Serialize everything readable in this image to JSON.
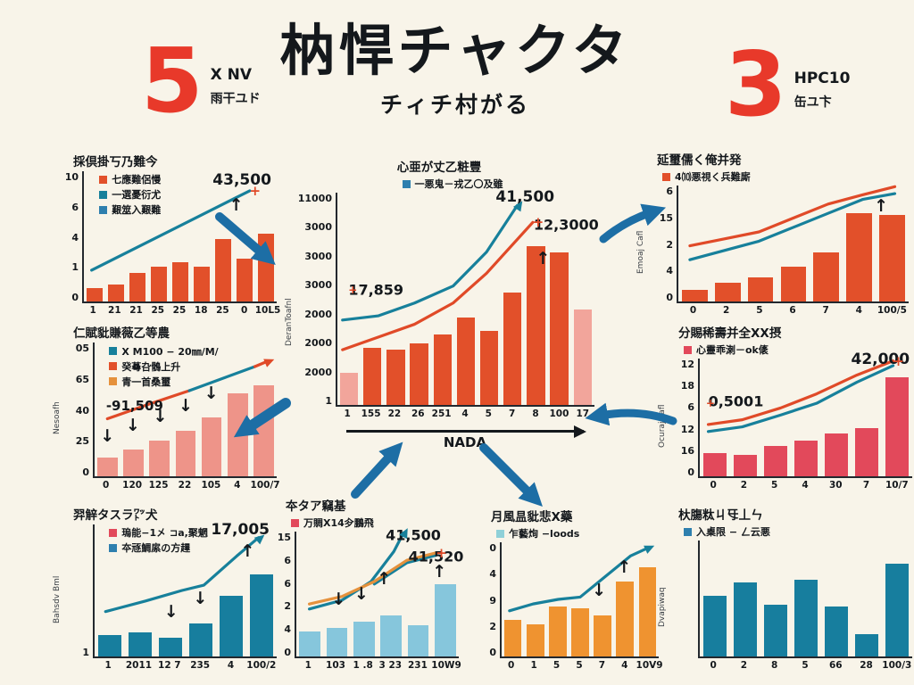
{
  "page": {
    "background": "#f8f4e9",
    "accent_red": "#e8392a",
    "arrow_blue": "#1d6ea5"
  },
  "header": {
    "left_stat": {
      "number": "5",
      "line1": "X NV",
      "line2": "雨干ユド"
    },
    "title": "枘悍チャクタ",
    "subtitle": "チィチ村がる",
    "right_stat": {
      "number": "3",
      "line1": "HPC10",
      "line2": "缶ユ卞"
    }
  },
  "chart_data": [
    {
      "id": "top-left",
      "type": "bar",
      "title": "採倶掛丂乃難今",
      "title_align": "left",
      "legend": [
        {
          "color": "#e2502a",
          "label": "七應難侶慢"
        },
        {
          "color": "#17809b",
          "label": "一選憂衍尤"
        },
        {
          "color": "#2e7fae",
          "label": "艱筮入艱難"
        }
      ],
      "legend_overlay": true,
      "y_ticks": [
        "10",
        "6",
        "4",
        "1",
        "0"
      ],
      "x_ticks": [
        "1",
        "21",
        "21",
        "25",
        "25",
        "18",
        "25",
        "0",
        "10L5"
      ],
      "bars": {
        "color": "#e2502a",
        "values": [
          10,
          13,
          22,
          27,
          30,
          27,
          48,
          33,
          52
        ]
      },
      "lines": [
        {
          "color": "#17809b",
          "points": [
            [
              4,
              76
            ],
            [
              86,
              15
            ]
          ],
          "end": "plus",
          "end_color": "#e04a28"
        }
      ],
      "annotations": [
        {
          "text": "43,500",
          "x": 82,
          "y": 7,
          "size": 17
        }
      ],
      "marks": [
        {
          "glyph": "↑",
          "x": 79,
          "y": 26
        }
      ]
    },
    {
      "id": "center",
      "type": "bar+line",
      "title": "心亜が丈乙粧豐",
      "title_align": "center",
      "legend": [
        {
          "color": "#2e7fae",
          "label": "一悪鬼－戎乙〇及雖"
        }
      ],
      "legend_align": "center",
      "ylabel": "DeranToafnl",
      "yaxis_w": 42,
      "y_ticks": [
        "11000",
        "3000",
        "3000",
        "3000",
        "2000",
        "2000",
        "2000",
        "1"
      ],
      "x_ticks": [
        "1",
        "155",
        "22",
        "26",
        "251",
        "4",
        "5",
        "7",
        "8",
        "100",
        "17"
      ],
      "bars": {
        "color": "#e2502a",
        "values": [
          15,
          27,
          26,
          29,
          33,
          41,
          35,
          53,
          75,
          72,
          45
        ],
        "colors": [
          "#f2a59b",
          null,
          null,
          null,
          null,
          null,
          null,
          null,
          null,
          null,
          "#f2a59b"
        ]
      },
      "lines": [
        {
          "color": "#17809b",
          "points": [
            [
              2,
              60
            ],
            [
              16,
              58
            ],
            [
              30,
              52
            ],
            [
              45,
              44
            ],
            [
              58,
              28
            ],
            [
              70,
              6
            ]
          ],
          "end": "arrow"
        },
        {
          "color": "#e04a28",
          "points": [
            [
              2,
              74
            ],
            [
              16,
              68
            ],
            [
              30,
              62
            ],
            [
              45,
              52
            ],
            [
              58,
              38
            ],
            [
              76,
              14
            ]
          ],
          "end": "plus"
        }
      ],
      "annotations": [
        {
          "text": "41,500",
          "x": 73,
          "y": 2,
          "size": 17
        },
        {
          "text": "12,3000",
          "x": 89,
          "y": 15,
          "size": 16
        },
        {
          "text": "17,859",
          "x": 15,
          "y": 46,
          "size": 16
        }
      ],
      "marks": [
        {
          "glyph": "↑",
          "x": 80,
          "y": 31
        },
        {
          "glyph": "+",
          "x": 6,
          "y": 46,
          "color": "#e04a28",
          "size": 12
        }
      ],
      "xlabel": "NADA"
    },
    {
      "id": "top-right",
      "type": "bar+line",
      "title": "延璽儒く俺并発",
      "title_align": "left",
      "legend": [
        {
          "color": "#e2502a",
          "label": "4⑽悪視く兵難廝"
        }
      ],
      "ylabel": "Emoaj Cafl",
      "y_ticks": [
        "6",
        "15",
        "2",
        "4",
        "0"
      ],
      "x_ticks": [
        "0",
        "2",
        "5",
        "6",
        "7",
        "4",
        "100/5"
      ],
      "bars": {
        "color": "#e2502a",
        "values": [
          10,
          16,
          21,
          30,
          42,
          76,
          75
        ]
      },
      "lines": [
        {
          "color": "#e04a28",
          "points": [
            [
              5,
              52
            ],
            [
              20,
              46
            ],
            [
              35,
              40
            ],
            [
              50,
              28
            ],
            [
              65,
              16
            ],
            [
              80,
              8
            ],
            [
              94,
              1
            ]
          ]
        },
        {
          "color": "#17809b",
          "points": [
            [
              5,
              64
            ],
            [
              20,
              56
            ],
            [
              35,
              48
            ],
            [
              50,
              36
            ],
            [
              65,
              24
            ],
            [
              80,
              12
            ],
            [
              94,
              7
            ]
          ]
        }
      ],
      "annotations": [],
      "marks": [
        {
          "glyph": "↑",
          "x": 88,
          "y": 18
        }
      ]
    },
    {
      "id": "mid-left",
      "type": "bar+line",
      "title": "仁賦豼賺薇乙等農",
      "title_align": "left",
      "legend": [
        {
          "color": "#17809b",
          "label": "X M100 − 20㎜/M/"
        },
        {
          "color": "#e2502a",
          "label": "癸蕚叴鶻上升"
        },
        {
          "color": "#e5913c",
          "label": "青一首桑璽"
        }
      ],
      "legend_overlay": true,
      "ylabel": "Nesoafh",
      "y_ticks": [
        "05",
        "65",
        "40",
        "25",
        "0"
      ],
      "x_ticks": [
        "0",
        "120",
        "125",
        "22",
        "105",
        "4",
        "100/7"
      ],
      "bars": {
        "color": "#ee9489",
        "values": [
          14,
          20,
          27,
          34,
          44,
          62,
          68
        ]
      },
      "lines": [
        {
          "color": "#e04a28",
          "points": [
            [
              7,
              57
            ],
            [
              30,
              46
            ],
            [
              52,
              36
            ]
          ]
        },
        {
          "color": "#17809b",
          "points": [
            [
              52,
              36
            ],
            [
              72,
              26
            ],
            [
              88,
              18
            ]
          ]
        },
        {
          "color": "#e04a28",
          "points": [
            [
              88,
              18
            ],
            [
              95,
              14
            ]
          ],
          "end": "arrow"
        }
      ],
      "annotations": [
        {
          "text": "-91,509",
          "x": 22,
          "y": 47,
          "size": 15
        }
      ],
      "marks": [
        {
          "glyph": "↓",
          "x": 7,
          "y": 70
        },
        {
          "glyph": "↓",
          "x": 21,
          "y": 62
        },
        {
          "glyph": "↓",
          "x": 36,
          "y": 55
        },
        {
          "glyph": "↓",
          "x": 50,
          "y": 47
        },
        {
          "glyph": "↓",
          "x": 64,
          "y": 38
        }
      ]
    },
    {
      "id": "mid-right",
      "type": "bar+line",
      "title": "分賜稀壽并全XX摂",
      "title_align": "left",
      "legend": [
        {
          "color": "#e2495b",
          "label": "心靈乖溂－ok㒅"
        }
      ],
      "ylabel": "Ocuraj cafl",
      "y_ticks": [
        "12",
        "18",
        "6",
        "12",
        "16",
        "0"
      ],
      "x_ticks": [
        "0",
        "2",
        "5",
        "4",
        "30",
        "7",
        "10/7"
      ],
      "bars": {
        "color": "#e2495b",
        "values": [
          20,
          18,
          26,
          30,
          36,
          41,
          84
        ]
      },
      "lines": [
        {
          "color": "#e04a28",
          "points": [
            [
              4,
              56
            ],
            [
              20,
              52
            ],
            [
              38,
              42
            ],
            [
              55,
              30
            ],
            [
              74,
              14
            ],
            [
              91,
              2
            ]
          ],
          "end": "plus"
        },
        {
          "color": "#17809b",
          "points": [
            [
              4,
              62
            ],
            [
              20,
              58
            ],
            [
              38,
              48
            ],
            [
              55,
              38
            ],
            [
              74,
              20
            ],
            [
              91,
              6
            ]
          ]
        }
      ],
      "annotations": [
        {
          "text": "0,5001",
          "x": 17,
          "y": 36,
          "size": 16
        },
        {
          "text": "42,000",
          "x": 85,
          "y": 1,
          "size": 17
        }
      ],
      "marks": [
        {
          "glyph": "+",
          "x": 5,
          "y": 38,
          "color": "#e04a28",
          "size": 12
        }
      ]
    },
    {
      "id": "bottom-left",
      "type": "bar+line",
      "title": "羿觪タスラ㍗犬",
      "title_align": "left",
      "legend": [
        {
          "color": "#e2495b",
          "label": "瑦能−1㐅 ⊐a,聚魍"
        },
        {
          "color": "#2e7fae",
          "label": "夲㒮鯛䋀の方䟆"
        }
      ],
      "legend_overlay": true,
      "ylabel": "Bahsdv Bml",
      "y_ticks": [
        "",
        "",
        "",
        "",
        "1"
      ],
      "x_ticks": [
        "1",
        "2011",
        "12 7",
        "235",
        "4",
        "100/2"
      ],
      "bars": {
        "color": "#177e9e",
        "values": [
          16,
          18,
          14,
          25,
          46,
          62
        ]
      },
      "lines": [
        {
          "color": "#17809b",
          "points": [
            [
              6,
              66
            ],
            [
              28,
              58
            ],
            [
              48,
              50
            ],
            [
              60,
              46
            ],
            [
              78,
              24
            ],
            [
              90,
              10
            ]
          ],
          "end": "arrow"
        }
      ],
      "annotations": [
        {
          "text": "17,005",
          "x": 80,
          "y": 4,
          "size": 17
        }
      ],
      "marks": [
        {
          "glyph": "↑",
          "x": 84,
          "y": 20
        },
        {
          "glyph": "↓",
          "x": 42,
          "y": 66
        },
        {
          "glyph": "↓",
          "x": 58,
          "y": 56
        }
      ]
    },
    {
      "id": "bottom-center-1",
      "type": "bar+line",
      "title": "夲タア竊基",
      "title_align": "left",
      "legend": [
        {
          "color": "#e2495b",
          "label": "万賙X14㒱鵬飛"
        }
      ],
      "y_ticks": [
        "15",
        "6",
        "6",
        "2",
        "4",
        "0"
      ],
      "x_ticks": [
        "1",
        "103",
        "1 .8",
        "3 23",
        "231",
        "10W9"
      ],
      "bars": {
        "color": "#86c6dc",
        "values": [
          20,
          23,
          28,
          33,
          25,
          58
        ]
      },
      "lines": [
        {
          "color": "#17809b",
          "points": [
            [
              8,
              62
            ],
            [
              28,
              55
            ],
            [
              46,
              40
            ],
            [
              60,
              16
            ],
            [
              66,
              1
            ]
          ],
          "end": "arrow"
        },
        {
          "color": "#17809b",
          "points": [
            [
              48,
              42
            ],
            [
              68,
              25
            ],
            [
              86,
              19
            ]
          ]
        },
        {
          "color": "#e5913c",
          "points": [
            [
              8,
              58
            ],
            [
              28,
              52
            ],
            [
              48,
              40
            ],
            [
              68,
              23
            ],
            [
              86,
              17
            ]
          ],
          "end": "plus"
        }
      ],
      "annotations": [
        {
          "text": "41,500",
          "x": 72,
          "y": 3,
          "size": 16
        },
        {
          "text": "41,520",
          "x": 86,
          "y": 20,
          "size": 16
        }
      ],
      "marks": [
        {
          "glyph": "↓",
          "x": 26,
          "y": 54
        },
        {
          "glyph": "↓",
          "x": 40,
          "y": 50
        },
        {
          "glyph": "↑",
          "x": 54,
          "y": 38
        },
        {
          "glyph": "↑",
          "x": 88,
          "y": 32
        }
      ]
    },
    {
      "id": "bottom-center-2",
      "type": "bar+line",
      "title": "月風昷豼悲X藥",
      "title_align": "left",
      "legend": [
        {
          "color": "#8fd0d8",
          "label": "乍藝㶷 −loods"
        }
      ],
      "y_ticks": [
        "0",
        "4",
        "9",
        "2",
        "0"
      ],
      "x_ticks": [
        "0",
        "1",
        "5",
        "5",
        "7",
        "4",
        "10V9"
      ],
      "bars": {
        "color": "#ef9330",
        "values": [
          32,
          28,
          44,
          42,
          36,
          66,
          78
        ]
      },
      "lines": [
        {
          "color": "#17809b",
          "points": [
            [
              5,
              60
            ],
            [
              20,
              54
            ],
            [
              36,
              50
            ],
            [
              50,
              48
            ],
            [
              66,
              30
            ],
            [
              82,
              12
            ],
            [
              93,
              5
            ]
          ],
          "end": "arrow"
        }
      ],
      "annotations": [],
      "marks": [
        {
          "glyph": "↓",
          "x": 62,
          "y": 42
        },
        {
          "glyph": "↑",
          "x": 78,
          "y": 22
        }
      ]
    },
    {
      "id": "bottom-right",
      "type": "bar",
      "title": "杕膓粏ㄐ㸦丄ㄣ",
      "title_align": "left",
      "legend": [
        {
          "color": "#2e7fae",
          "label": "入㮚限 − ㄥ云悪"
        }
      ],
      "ylabel": "Dvapiwaq",
      "y_ticks": [
        "",
        "",
        "",
        ""
      ],
      "x_ticks": [
        "0",
        "2",
        "8",
        "5",
        "66",
        "28",
        "100/3"
      ],
      "bars": {
        "color": "#177e9e",
        "values": [
          52,
          64,
          45,
          66,
          43,
          19,
          80
        ]
      },
      "annotations": [],
      "marks": []
    }
  ]
}
